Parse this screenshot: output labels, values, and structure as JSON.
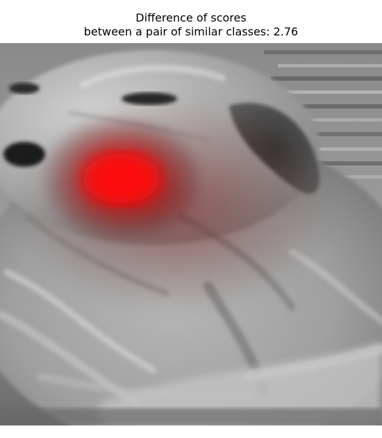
{
  "title": {
    "line1": "Difference of scores",
    "line2": "between a pair of similar classes: 2.76"
  },
  "image": {
    "subject": "grayscale dog photograph",
    "overlay": "heatmap",
    "heatmap_color": "#ff0000"
  }
}
